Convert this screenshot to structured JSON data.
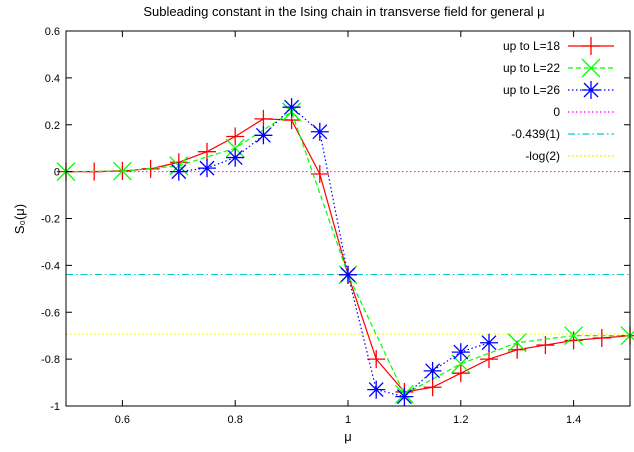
{
  "chart_data": {
    "type": "line",
    "title": "Subleading constant in the Ising chain in transverse field for general μ",
    "xlabel": "μ",
    "ylabel": "S₀(μ)",
    "xlim": [
      0.5,
      1.5
    ],
    "ylim": [
      -1,
      0.6
    ],
    "xticks": [
      0.6,
      0.8,
      1.0,
      1.2,
      1.4
    ],
    "xtick_labels": [
      "0.6",
      "0.8",
      "1",
      "1.2",
      "1.4"
    ],
    "yticks": [
      -1,
      -0.8,
      -0.6,
      -0.4,
      -0.2,
      0,
      0.2,
      0.4,
      0.6
    ],
    "ytick_labels": [
      "-1",
      "-0.8",
      "-0.6",
      "-0.4",
      "-0.2",
      "0",
      "0.2",
      "0.4",
      "0.6"
    ],
    "grid": false,
    "legend_position": "top-right",
    "series": [
      {
        "name": "up to L=18",
        "color": "#ff0000",
        "line_style": "solid",
        "marker": "plus",
        "x": [
          0.5,
          0.55,
          0.6,
          0.65,
          0.7,
          0.75,
          0.8,
          0.85,
          0.9,
          0.95,
          1.0,
          1.05,
          1.1,
          1.15,
          1.2,
          1.25,
          1.3,
          1.35,
          1.4,
          1.45,
          1.5
        ],
        "y": [
          0.0,
          0.0,
          0.003,
          0.012,
          0.04,
          0.085,
          0.15,
          0.225,
          0.22,
          -0.01,
          -0.44,
          -0.8,
          -0.94,
          -0.92,
          -0.86,
          -0.8,
          -0.76,
          -0.74,
          -0.72,
          -0.71,
          -0.7
        ]
      },
      {
        "name": "up to L=22",
        "color": "#00ff00",
        "line_style": "dashed",
        "marker": "x",
        "x": [
          0.5,
          0.6,
          0.7,
          0.8,
          0.9,
          1.0,
          1.1,
          1.2,
          1.3,
          1.4,
          1.5
        ],
        "y": [
          0.0,
          0.002,
          0.025,
          0.1,
          0.255,
          -0.44,
          -0.95,
          -0.82,
          -0.73,
          -0.7,
          -0.7
        ]
      },
      {
        "name": "up to L=26",
        "color": "#0000ff",
        "line_style": "dotted",
        "marker": "star",
        "x": [
          0.7,
          0.75,
          0.8,
          0.85,
          0.9,
          0.95,
          1.0,
          1.05,
          1.1,
          1.15,
          1.2,
          1.25
        ],
        "y": [
          0.0,
          0.015,
          0.06,
          0.155,
          0.275,
          0.17,
          -0.44,
          -0.93,
          -0.96,
          -0.85,
          -0.77,
          -0.73
        ]
      }
    ],
    "reference_lines": [
      {
        "name": "0",
        "y": 0.0,
        "color": "#ff00ff",
        "line_style": "dotted"
      },
      {
        "name": "-0.439(1)",
        "y": -0.439,
        "color": "#00cccc",
        "line_style": "dashdot"
      },
      {
        "name": "-log(2)",
        "y": -0.6931,
        "color": "#e6e600",
        "line_style": "dotted"
      }
    ]
  }
}
